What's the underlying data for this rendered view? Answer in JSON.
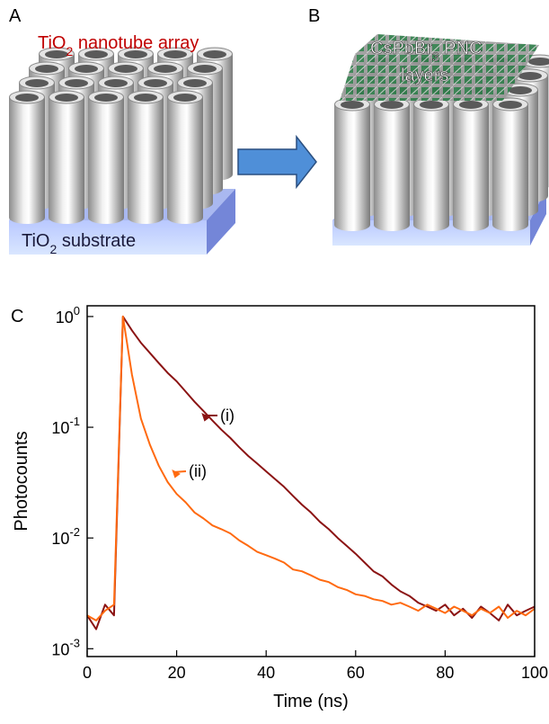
{
  "panels": {
    "a": {
      "label": "A",
      "title_parts": [
        "TiO",
        "2",
        " nanotube array"
      ],
      "substrate_parts": [
        "TiO",
        "2",
        " substrate"
      ]
    },
    "b": {
      "label": "B",
      "layer_lines": [
        [
          "CsPbBr",
          "3",
          " PNC"
        ],
        [
          "layers"
        ]
      ]
    },
    "c": {
      "label": "C"
    }
  },
  "chart_data": {
    "type": "line",
    "x_label": "Time (ns)",
    "y_label": "Photocounts",
    "log_y": true,
    "x": [
      0,
      2,
      4,
      6,
      8,
      10,
      12,
      14,
      16,
      18,
      20,
      22,
      24,
      26,
      28,
      30,
      32,
      34,
      36,
      38,
      40,
      42,
      44,
      46,
      48,
      50,
      52,
      54,
      56,
      58,
      60,
      62,
      64,
      66,
      68,
      70,
      72,
      74,
      76,
      78,
      80,
      82,
      84,
      86,
      88,
      90,
      92,
      94,
      96,
      98,
      100
    ],
    "series": [
      {
        "name": "(i)",
        "color": "#8b1414",
        "values": [
          0.002,
          0.0015,
          0.0025,
          0.002,
          1.0,
          0.75,
          0.58,
          0.47,
          0.38,
          0.31,
          0.26,
          0.21,
          0.17,
          0.14,
          0.115,
          0.095,
          0.08,
          0.066,
          0.055,
          0.047,
          0.04,
          0.034,
          0.029,
          0.024,
          0.02,
          0.017,
          0.014,
          0.012,
          0.01,
          0.0085,
          0.0072,
          0.006,
          0.005,
          0.0045,
          0.0038,
          0.0033,
          0.003,
          0.0026,
          0.0024,
          0.0022,
          0.0025,
          0.002,
          0.0023,
          0.0019,
          0.0024,
          0.0021,
          0.0018,
          0.0025,
          0.002,
          0.0022,
          0.0024
        ]
      },
      {
        "name": "(ii)",
        "color": "#ff6a10",
        "values": [
          0.002,
          0.0018,
          0.0022,
          0.0025,
          1.0,
          0.3,
          0.12,
          0.07,
          0.045,
          0.032,
          0.025,
          0.021,
          0.017,
          0.015,
          0.013,
          0.012,
          0.011,
          0.0095,
          0.0085,
          0.0075,
          0.007,
          0.0065,
          0.006,
          0.0052,
          0.005,
          0.0046,
          0.0042,
          0.004,
          0.0036,
          0.0034,
          0.0031,
          0.003,
          0.0028,
          0.0027,
          0.0025,
          0.0026,
          0.0024,
          0.0022,
          0.0025,
          0.0023,
          0.0021,
          0.0024,
          0.0022,
          0.002,
          0.0023,
          0.0021,
          0.0024,
          0.0019,
          0.0022,
          0.002,
          0.0023
        ]
      }
    ],
    "xlim": [
      0,
      100
    ],
    "xticks": [
      0,
      20,
      40,
      60,
      80,
      100
    ],
    "ylim": [
      0.00085,
      1.25
    ],
    "yticks": [
      {
        "value": 1,
        "label": "10",
        "exponent": "0"
      },
      {
        "value": 0.1,
        "label": "10",
        "exponent": "-1"
      },
      {
        "value": 0.01,
        "label": "10",
        "exponent": "-2"
      },
      {
        "value": 0.001,
        "label": "10",
        "exponent": "-3"
      }
    ]
  }
}
